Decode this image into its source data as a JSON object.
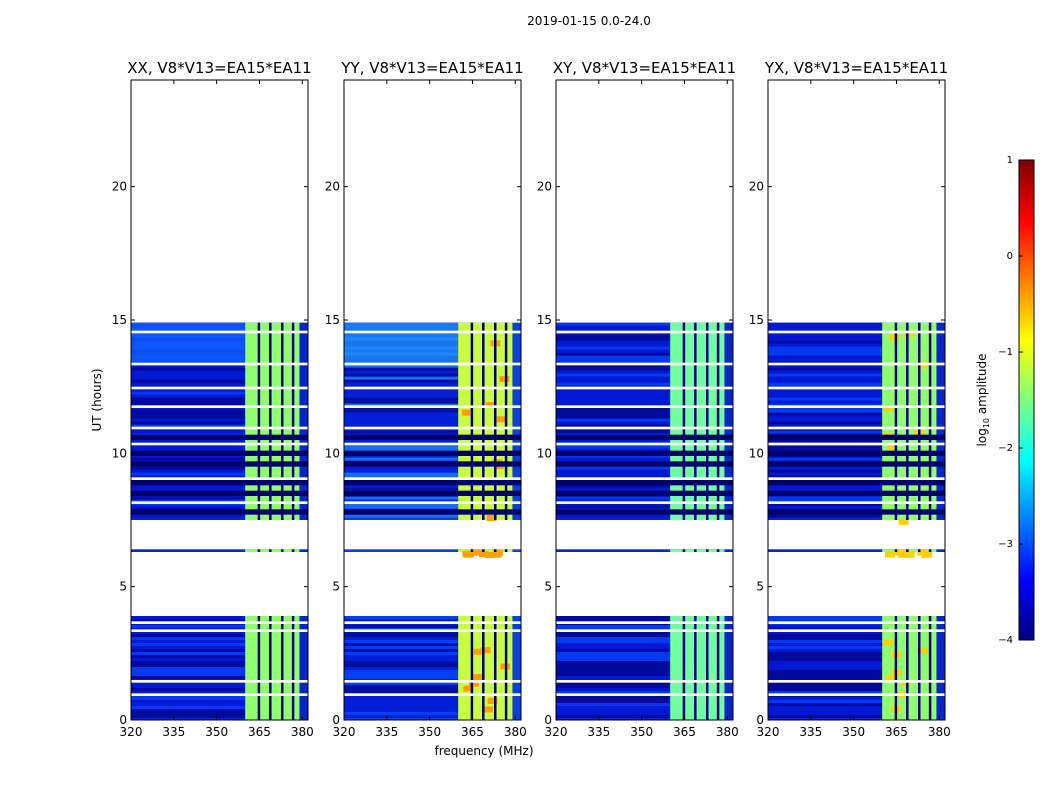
{
  "figure": {
    "suptitle": "2019-01-15 0.0-24.0",
    "xlabel": "frequency (MHz)",
    "ylabel": "UT (hours)"
  },
  "chart_data": {
    "type": "heatmap",
    "title": "2019-01-15 0.0-24.0",
    "xlabel": "frequency (MHz)",
    "ylabel": "UT (hours)",
    "xlim": [
      320,
      382
    ],
    "ylim": [
      0,
      24
    ],
    "xticks": [
      320,
      335,
      350,
      365,
      380
    ],
    "yticks": [
      0,
      5,
      10,
      15,
      20
    ],
    "panels": [
      {
        "title": "XX, V8*V13=EA15*EA11",
        "pol": "XX"
      },
      {
        "title": "YY, V8*V13=EA15*EA11",
        "pol": "YY"
      },
      {
        "title": "XY, V8*V13=EA15*EA11",
        "pol": "XY"
      },
      {
        "title": "YX, V8*V13=EA15*EA11",
        "pol": "YX"
      }
    ],
    "data_coverage_hours": [
      [
        0.0,
        3.9
      ],
      [
        6.3,
        6.4
      ],
      [
        7.5,
        14.9
      ]
    ],
    "bright_band_mhz": [
      360,
      379
    ],
    "colorbar": {
      "label": "log10 amplitude",
      "range": [
        -4,
        1
      ],
      "ticks": [
        1,
        0,
        -1,
        -2,
        -3,
        -4
      ],
      "tick_labels": [
        "1",
        "0",
        "−1",
        "−2",
        "−3",
        "−4"
      ],
      "colormap": "jet"
    }
  },
  "colors": {
    "jet": [
      "#00007f",
      "#0000ff",
      "#007fff",
      "#00ffff",
      "#7fff7f",
      "#ffff00",
      "#ff7f00",
      "#ff0000",
      "#7f0000"
    ]
  }
}
